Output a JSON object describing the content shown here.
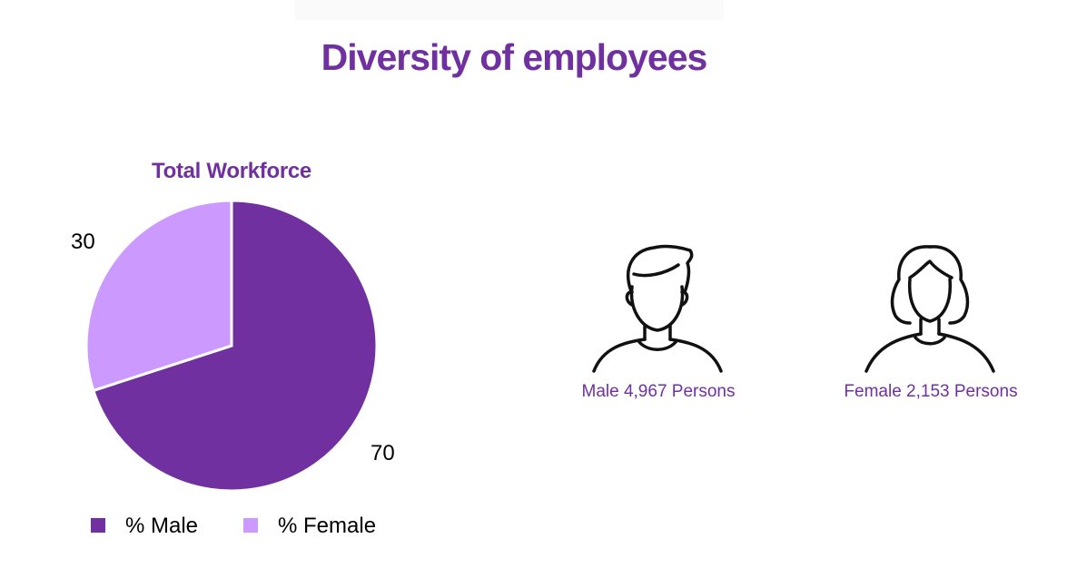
{
  "page": {
    "title": "Diversity of employees"
  },
  "colors": {
    "accent": "#7030a0",
    "male": "#7030a0",
    "female": "#cc99ff"
  },
  "chart_data": {
    "type": "pie",
    "title": "Total Workforce",
    "slices": [
      {
        "label": "% Male",
        "value": 70,
        "color": "#7030a0"
      },
      {
        "label": "% Female",
        "value": 30,
        "color": "#cc99ff"
      }
    ],
    "data_labels": [
      "70",
      "30"
    ],
    "legend": {
      "position": "bottom",
      "entries": [
        "% Male",
        "% Female"
      ]
    }
  },
  "people": {
    "male": {
      "icon": "male-person-icon",
      "caption": "Male 4,967 Persons"
    },
    "female": {
      "icon": "female-person-icon",
      "caption": "Female 2,153 Persons"
    }
  }
}
